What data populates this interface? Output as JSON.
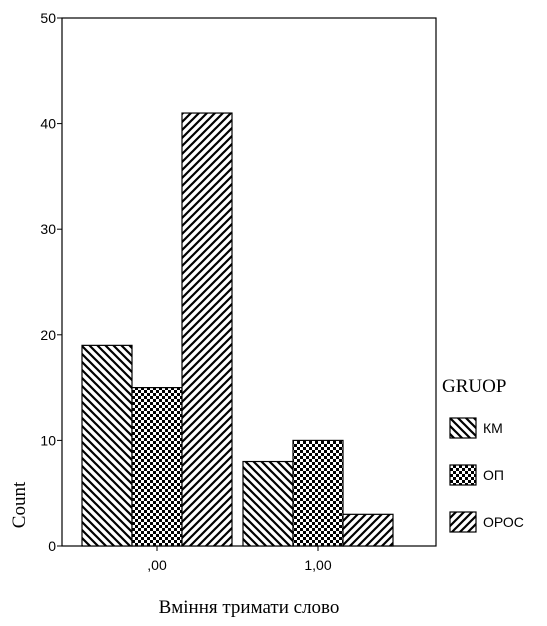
{
  "chart_data": {
    "type": "bar",
    "categories": [
      ",00",
      "1,00"
    ],
    "series": [
      {
        "name": "КМ",
        "values": [
          19,
          8
        ],
        "pattern": "diag-down"
      },
      {
        "name": "ОП",
        "values": [
          15,
          10
        ],
        "pattern": "checker"
      },
      {
        "name": "ОРОС",
        "values": [
          41,
          3
        ],
        "pattern": "diag-up"
      }
    ],
    "xlabel": "Вміння тримати слово",
    "ylabel": "Count",
    "ylim": [
      0,
      50
    ],
    "yticks": [
      "0",
      "10",
      "20",
      "30",
      "40",
      "50"
    ],
    "legend_title": "GRUOP",
    "legend_position": "right",
    "grid": false
  }
}
